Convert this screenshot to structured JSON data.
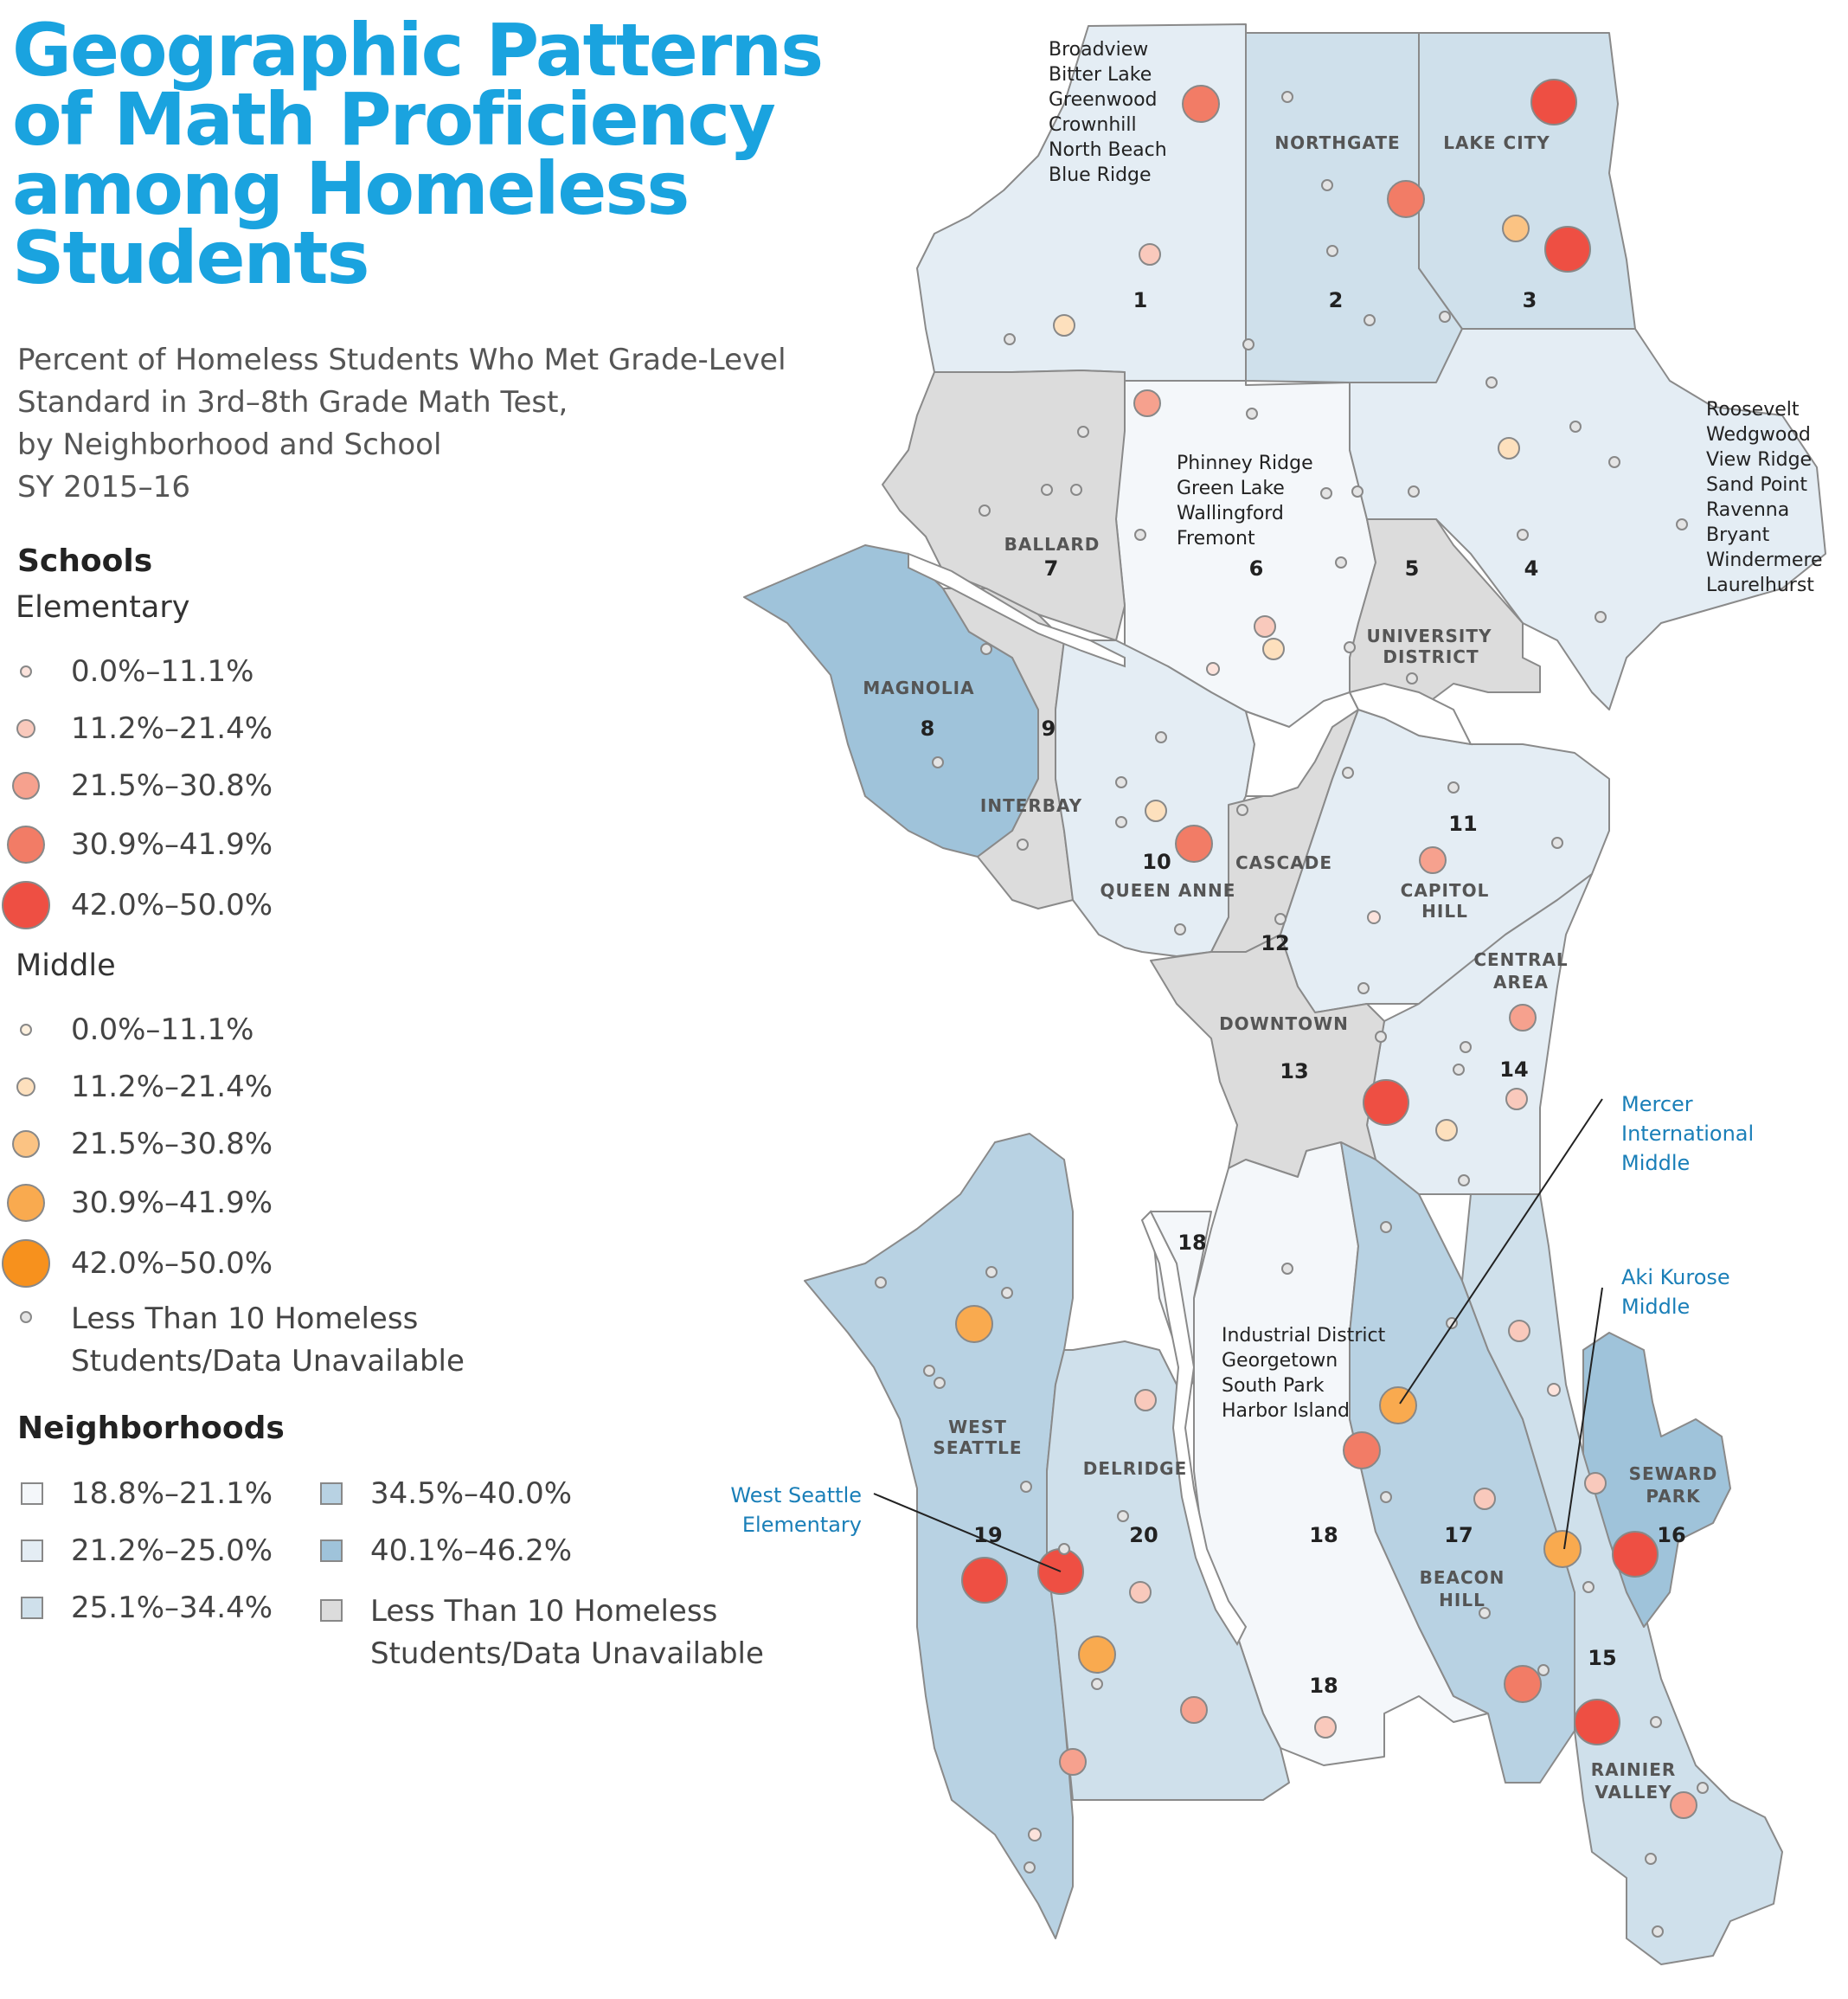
{
  "title_lines": [
    "Geographic Patterns",
    "of Math Proficiency",
    "among Homeless",
    "Students"
  ],
  "subtitle_lines": [
    "Percent of Homeless Students Who Met Grade-Level",
    "Standard in 3rd–8th Grade Math Test,",
    "by Neighborhood and School",
    "SY 2015–16"
  ],
  "legend": {
    "schools_heading": "Schools",
    "elementary_heading": "Elementary",
    "middle_heading": "Middle",
    "bins": [
      "0.0%–11.1%",
      "11.2%–21.4%",
      "21.5%–30.8%",
      "30.9%–41.9%",
      "42.0%–50.0%"
    ],
    "elementary_colors": [
      "#fce3dc",
      "#f9c9bc",
      "#f6a18e",
      "#f27c66",
      "#ee4f43"
    ],
    "middle_colors": [
      "#fdf0de",
      "#fde0bd",
      "#fbc383",
      "#f9aa4f",
      "#f7911d"
    ],
    "no_data_school": [
      "Less Than 10 Homeless",
      "Students/Data Unavailable"
    ],
    "neighborhoods_heading": "Neighborhoods",
    "neighborhood_bins": [
      "18.8%–21.1%",
      "21.2%–25.0%",
      "25.1%–34.4%",
      "34.5%–40.0%",
      "40.1%–46.2%"
    ],
    "neighborhood_colors": [
      "#f4f7fa",
      "#e4edf4",
      "#cfe0eb",
      "#b8d2e3",
      "#9fc3da"
    ],
    "no_data_neighborhood": [
      "Less Than 10 Homeless",
      "Students/Data Unavailable"
    ],
    "no_data_color": "#dcdcdc"
  },
  "map": {
    "neighborhood_numbers": [
      "1",
      "2",
      "3",
      "4",
      "5",
      "6",
      "7",
      "8",
      "9",
      "10",
      "11",
      "12",
      "13",
      "14",
      "15",
      "16",
      "17",
      "18",
      "18",
      "18",
      "19",
      "20"
    ],
    "neighborhood_names": [
      "NORTHGATE",
      "LAKE CITY",
      "BALLARD",
      "UNIVERSITY",
      "DISTRICT",
      "MAGNOLIA",
      "INTERBAY",
      "QUEEN ANNE",
      "CASCADE",
      "CAPITOL",
      "HILL",
      "CENTRAL",
      "AREA",
      "DOWNTOWN",
      "WEST",
      "SEATTLE",
      "DELRIDGE",
      "BEACON",
      "HILL",
      "SEWARD",
      "PARK",
      "RAINIER",
      "VALLEY"
    ],
    "area1_list": [
      "Broadview",
      "Bitter Lake",
      "Greenwood",
      "Crownhill",
      "North Beach",
      "Blue Ridge"
    ],
    "area6_list": [
      "Phinney Ridge",
      "Green Lake",
      "Wallingford",
      "Fremont"
    ],
    "area4_list": [
      "Roosevelt",
      "Wedgwood",
      "View Ridge",
      "Sand Point",
      "Ravenna",
      "Bryant",
      "Windermere",
      "Laurelhurst"
    ],
    "area18_list": [
      "Industrial District",
      "Georgetown",
      "South Park",
      "Harbor Island"
    ],
    "callouts": {
      "mercer": [
        "Mercer",
        "International",
        "Middle"
      ],
      "aki": [
        "Aki Kurose",
        "Middle"
      ],
      "westseattle": [
        "West Seattle",
        "Elementary"
      ]
    },
    "callout_color": "#1a7fb8"
  }
}
